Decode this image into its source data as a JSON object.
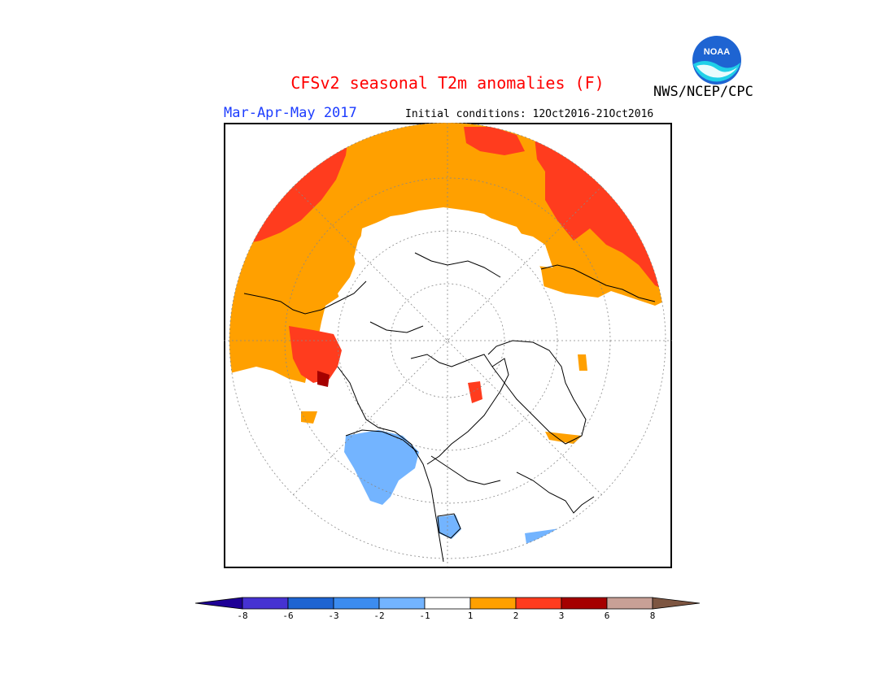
{
  "header": {
    "title": "CFSv2 seasonal T2m anomalies (F)",
    "period": "Mar-Apr-May 2017",
    "initial_conditions": "Initial conditions: 12Oct2016-21Oct2016",
    "agency": "NWS/NCEP/CPC",
    "logo_text": "NOAA"
  },
  "map": {
    "projection": "north polar stereographic",
    "anomaly_colors": {
      "warm_1_2": "#ffa000",
      "warm_2_3": "#ff3c1e",
      "warm_3_6": "#a50000",
      "cool_-2_-1": "#73b4ff",
      "neutral": "#ffffff"
    }
  },
  "colorbar": {
    "ticks": [
      "-8",
      "-6",
      "-3",
      "-2",
      "-1",
      "1",
      "2",
      "3",
      "6",
      "8"
    ],
    "colors": [
      "#1e0096",
      "#4632d2",
      "#1e64d2",
      "#3c8cf0",
      "#73b4ff",
      "#ffffff",
      "#ffa000",
      "#ff3c1e",
      "#a50000",
      "#c8a096",
      "#7d5541"
    ]
  }
}
